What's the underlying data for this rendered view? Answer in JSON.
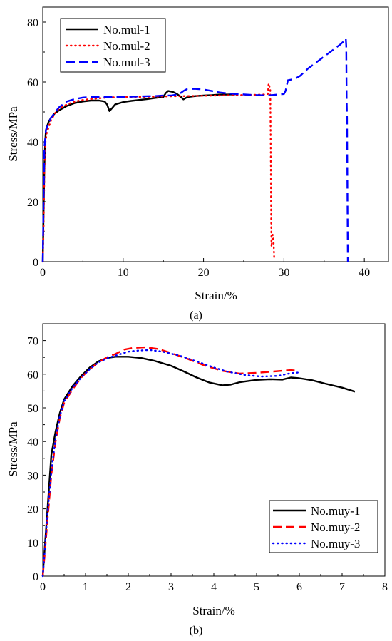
{
  "chart_data": [
    {
      "type": "line",
      "panel_label": "(a)",
      "title": "",
      "xlabel": "Strain/%",
      "ylabel": "Stress/MPa",
      "xlim": [
        0,
        43
      ],
      "ylim": [
        0,
        85
      ],
      "xticks": [
        0,
        10,
        20,
        30,
        40
      ],
      "yticks": [
        0,
        20,
        40,
        60,
        80
      ],
      "grid": false,
      "legend": "top-left",
      "series": [
        {
          "name": "No.mul-1",
          "color": "#000000",
          "dash": "solid",
          "points": [
            [
              0,
              0
            ],
            [
              0.1,
              15
            ],
            [
              0.2,
              32
            ],
            [
              0.3,
              40
            ],
            [
              0.4,
              44
            ],
            [
              0.7,
              46.5
            ],
            [
              1,
              48
            ],
            [
              1.5,
              49.5
            ],
            [
              2,
              50.5
            ],
            [
              3,
              52
            ],
            [
              4,
              53
            ],
            [
              5,
              53.5
            ],
            [
              6,
              53.8
            ],
            [
              7,
              53.8
            ],
            [
              7.7,
              53.5
            ],
            [
              8,
              52.5
            ],
            [
              8.3,
              50.3
            ],
            [
              8.6,
              51.2
            ],
            [
              9,
              52.5
            ],
            [
              10,
              53.3
            ],
            [
              11,
              53.7
            ],
            [
              12,
              54
            ],
            [
              13,
              54.3
            ],
            [
              14,
              54.7
            ],
            [
              15,
              55
            ],
            [
              15.3,
              56.3
            ],
            [
              15.6,
              57
            ],
            [
              16.2,
              56.7
            ],
            [
              16.7,
              56
            ],
            [
              17.2,
              55
            ],
            [
              17.5,
              54.2
            ],
            [
              18,
              55
            ],
            [
              19,
              55.3
            ],
            [
              20,
              55.5
            ],
            [
              21,
              55.6
            ],
            [
              22,
              55.8
            ],
            [
              23,
              55.8
            ],
            [
              24,
              55.9
            ]
          ]
        },
        {
          "name": "No.mul-2",
          "color": "#ff0000",
          "dash": "dot",
          "points": [
            [
              0,
              0
            ],
            [
              0.1,
              10
            ],
            [
              0.2,
              30
            ],
            [
              0.35,
              40
            ],
            [
              0.5,
              43
            ],
            [
              1,
              47
            ],
            [
              1.5,
              49.5
            ],
            [
              2,
              51
            ],
            [
              3,
              52.5
            ],
            [
              4,
              53.5
            ],
            [
              5,
              54
            ],
            [
              6,
              54.3
            ],
            [
              8,
              54.8
            ],
            [
              10,
              55
            ],
            [
              12,
              55
            ],
            [
              15,
              55.2
            ],
            [
              18,
              55.3
            ],
            [
              20,
              55.4
            ],
            [
              22,
              55.5
            ],
            [
              24,
              55.6
            ],
            [
              26,
              55.7
            ],
            [
              27.5,
              55.8
            ],
            [
              28,
              56
            ],
            [
              28.1,
              59.5
            ],
            [
              28.3,
              57.5
            ],
            [
              28.35,
              40
            ],
            [
              28.4,
              20
            ],
            [
              28.45,
              5
            ],
            [
              28.6,
              9
            ],
            [
              28.7,
              8
            ],
            [
              28.8,
              0.5
            ]
          ]
        },
        {
          "name": "No.mul-3",
          "color": "#0000ff",
          "dash": "dash",
          "points": [
            [
              0,
              0
            ],
            [
              0.1,
              20
            ],
            [
              0.2,
              38
            ],
            [
              0.4,
              44
            ],
            [
              1,
              48
            ],
            [
              2,
              51.5
            ],
            [
              3,
              53.5
            ],
            [
              4,
              54.3
            ],
            [
              5,
              54.8
            ],
            [
              6,
              55
            ],
            [
              8,
              55
            ],
            [
              10,
              55
            ],
            [
              12,
              55.2
            ],
            [
              14,
              55.3
            ],
            [
              15,
              55.5
            ],
            [
              16,
              55.5
            ],
            [
              17,
              56
            ],
            [
              17.5,
              57
            ],
            [
              18,
              57.7
            ],
            [
              19,
              57.7
            ],
            [
              20,
              57.5
            ],
            [
              21,
              57
            ],
            [
              22,
              56.5
            ],
            [
              23,
              56.2
            ],
            [
              24,
              56
            ],
            [
              26,
              55.7
            ],
            [
              28,
              55.5
            ],
            [
              30,
              56
            ],
            [
              30.2,
              57
            ],
            [
              30.5,
              60.6
            ],
            [
              31.3,
              61
            ],
            [
              32,
              62
            ],
            [
              33,
              64.5
            ],
            [
              34,
              66.5
            ],
            [
              35,
              68.5
            ],
            [
              36,
              70.5
            ],
            [
              37,
              72.5
            ],
            [
              37.6,
              74
            ],
            [
              37.7,
              74.5
            ],
            [
              37.75,
              72
            ],
            [
              37.8,
              55
            ],
            [
              37.85,
              48
            ],
            [
              37.9,
              20
            ],
            [
              37.95,
              0
            ]
          ]
        }
      ]
    },
    {
      "type": "line",
      "panel_label": "(b)",
      "title": "",
      "xlabel": "Strain/%",
      "ylabel": "Stress/MPa",
      "xlim": [
        0,
        8
      ],
      "ylim": [
        0,
        75
      ],
      "xticks": [
        0,
        1,
        2,
        3,
        4,
        5,
        6,
        7,
        8
      ],
      "yticks": [
        0,
        10,
        20,
        30,
        40,
        50,
        60,
        70
      ],
      "grid": false,
      "legend": "bottom-right",
      "series": [
        {
          "name": "No.muy-1",
          "color": "#000000",
          "dash": "solid",
          "points": [
            [
              0,
              0
            ],
            [
              0.05,
              9
            ],
            [
              0.1,
              18
            ],
            [
              0.15,
              27
            ],
            [
              0.2,
              36
            ],
            [
              0.3,
              43
            ],
            [
              0.4,
              48.5
            ],
            [
              0.5,
              52.5
            ],
            [
              0.7,
              56.5
            ],
            [
              0.9,
              59.5
            ],
            [
              1.1,
              62
            ],
            [
              1.3,
              63.8
            ],
            [
              1.5,
              64.8
            ],
            [
              1.7,
              65.2
            ],
            [
              2,
              65.2
            ],
            [
              2.3,
              64.8
            ],
            [
              2.6,
              64
            ],
            [
              3,
              62.5
            ],
            [
              3.3,
              60.8
            ],
            [
              3.6,
              59
            ],
            [
              3.9,
              57.5
            ],
            [
              4.2,
              56.7
            ],
            [
              4.4,
              56.9
            ],
            [
              4.6,
              57.6
            ],
            [
              5,
              58.3
            ],
            [
              5.3,
              58.5
            ],
            [
              5.6,
              58.4
            ],
            [
              5.8,
              59
            ],
            [
              6,
              58.8
            ],
            [
              6.3,
              58.2
            ],
            [
              6.6,
              57.2
            ],
            [
              7,
              56
            ],
            [
              7.3,
              54.8
            ]
          ]
        },
        {
          "name": "No.muy-2",
          "color": "#ff0000",
          "dash": "dash",
          "points": [
            [
              0,
              0
            ],
            [
              0.05,
              7
            ],
            [
              0.1,
              15
            ],
            [
              0.2,
              30
            ],
            [
              0.3,
              40
            ],
            [
              0.4,
              47
            ],
            [
              0.5,
              51.5
            ],
            [
              0.7,
              55.5
            ],
            [
              0.9,
              59
            ],
            [
              1.1,
              61.5
            ],
            [
              1.3,
              63.5
            ],
            [
              1.5,
              65
            ],
            [
              1.7,
              66
            ],
            [
              1.9,
              67.3
            ],
            [
              2.1,
              67.8
            ],
            [
              2.4,
              68
            ],
            [
              2.7,
              67.5
            ],
            [
              3,
              66.3
            ],
            [
              3.4,
              64.5
            ],
            [
              3.8,
              62.5
            ],
            [
              4.2,
              61
            ],
            [
              4.6,
              60.2
            ],
            [
              5,
              60.4
            ],
            [
              5.4,
              60.8
            ],
            [
              5.8,
              61.2
            ],
            [
              6,
              61
            ]
          ]
        },
        {
          "name": "No.muy-3",
          "color": "#0000ff",
          "dash": "dot",
          "points": [
            [
              0,
              0
            ],
            [
              0.05,
              8
            ],
            [
              0.1,
              17
            ],
            [
              0.2,
              31
            ],
            [
              0.3,
              41
            ],
            [
              0.4,
              47.5
            ],
            [
              0.5,
              52
            ],
            [
              0.7,
              56
            ],
            [
              0.9,
              59
            ],
            [
              1.1,
              61.5
            ],
            [
              1.3,
              63.5
            ],
            [
              1.5,
              64.7
            ],
            [
              1.7,
              65.5
            ],
            [
              2,
              66.7
            ],
            [
              2.2,
              67
            ],
            [
              2.5,
              67.2
            ],
            [
              2.8,
              66.7
            ],
            [
              3.2,
              65.5
            ],
            [
              3.6,
              63.8
            ],
            [
              4,
              62
            ],
            [
              4.3,
              60.8
            ],
            [
              4.7,
              59.8
            ],
            [
              5.1,
              59.3
            ],
            [
              5.5,
              59.5
            ],
            [
              5.8,
              60.3
            ],
            [
              6,
              60.5
            ]
          ]
        }
      ]
    }
  ]
}
